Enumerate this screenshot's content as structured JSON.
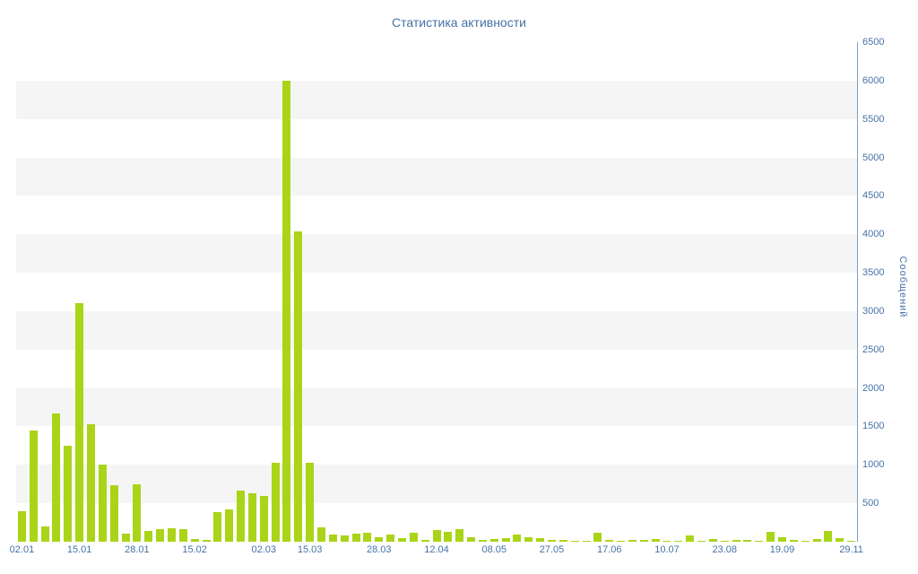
{
  "chart_data": {
    "type": "bar",
    "title": "Статистика активности",
    "xlabel": "",
    "ylabel": "Сообщений",
    "ylim": [
      0,
      6500
    ],
    "y_tick_step": 500,
    "y_tick_labels": [
      "500",
      "1000",
      "1500",
      "2000",
      "2500",
      "3000",
      "3500",
      "4000",
      "4500",
      "5000",
      "5500",
      "6000",
      "6500"
    ],
    "grid": "alternating-horizontal-bands",
    "legend": "none",
    "colors": {
      "bar": "#aad418",
      "band": "#f5f5f5",
      "title": "#4572a7",
      "axis_labels": "#4572a7",
      "axis_line": "#7d9ec4"
    },
    "x_ticks": [
      {
        "index": 0,
        "label": "02.01"
      },
      {
        "index": 5,
        "label": "15.01"
      },
      {
        "index": 10,
        "label": "28.01"
      },
      {
        "index": 15,
        "label": "15.02"
      },
      {
        "index": 21,
        "label": "02.03"
      },
      {
        "index": 25,
        "label": "15.03"
      },
      {
        "index": 31,
        "label": "28.03"
      },
      {
        "index": 36,
        "label": "12.04"
      },
      {
        "index": 41,
        "label": "08.05"
      },
      {
        "index": 46,
        "label": "27.05"
      },
      {
        "index": 51,
        "label": "17.06"
      },
      {
        "index": 56,
        "label": "10.07"
      },
      {
        "index": 61,
        "label": "23.08"
      },
      {
        "index": 66,
        "label": "19.09"
      },
      {
        "index": 72,
        "label": "29.11"
      }
    ],
    "values": [
      400,
      1450,
      200,
      1670,
      1250,
      3100,
      1530,
      1000,
      740,
      105,
      750,
      140,
      160,
      170,
      160,
      40,
      25,
      380,
      420,
      660,
      630,
      600,
      1030,
      6000,
      4040,
      1030,
      185,
      95,
      80,
      105,
      115,
      60,
      95,
      45,
      115,
      25,
      150,
      130,
      165,
      60,
      25,
      35,
      45,
      95,
      55,
      45,
      25,
      20,
      10,
      15,
      115,
      25,
      15,
      20,
      20,
      40,
      15,
      10,
      80,
      10,
      30,
      10,
      25,
      20,
      15,
      130,
      60,
      20,
      10,
      30,
      140,
      45,
      10
    ]
  }
}
